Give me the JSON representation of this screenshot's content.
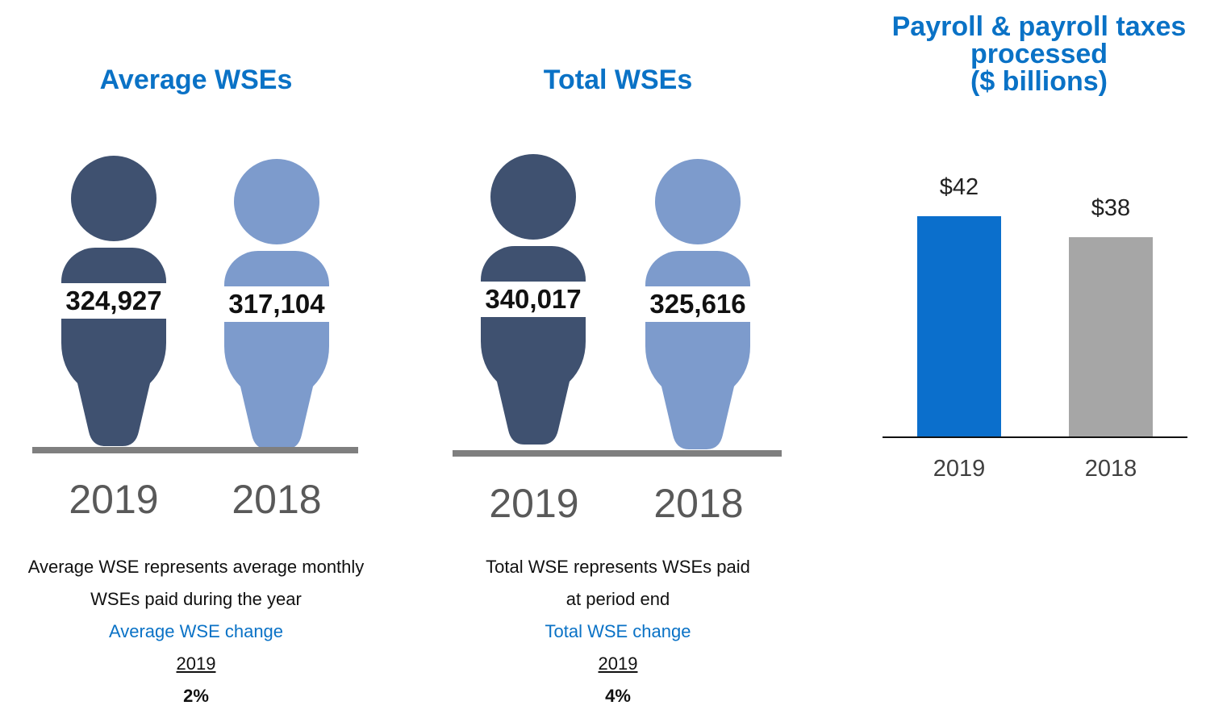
{
  "panels": [
    {
      "title": "Average WSEs",
      "people": [
        {
          "year": "2019",
          "value": "324,927"
        },
        {
          "year": "2018",
          "value": "317,104"
        }
      ],
      "note_line1": "Average WSE represents average monthly",
      "note_line2": "WSEs paid during the year",
      "change_label": "Average WSE change",
      "change_year": "2019",
      "change_value": "2%"
    },
    {
      "title": "Total WSEs",
      "people": [
        {
          "year": "2019",
          "value": "340,017"
        },
        {
          "year": "2018",
          "value": "325,616"
        }
      ],
      "note_line1": "Total WSE represents WSEs paid",
      "note_line2": "at period end",
      "change_label": "Total WSE change",
      "change_year": "2019",
      "change_value": "4%"
    }
  ],
  "colors": {
    "title_blue": "#0a72c6",
    "person_2019": "#3f5170",
    "person_2018": "#7d9bcc",
    "bar_2019": "#0b6fcc",
    "bar_2018": "#a6a6a6"
  },
  "chart_data": [
    {
      "type": "bar",
      "title_lines": [
        "Payroll & payroll taxes",
        "processed",
        "($ billions)"
      ],
      "categories": [
        "2019",
        "2018"
      ],
      "values": [
        42,
        38
      ],
      "value_labels": [
        "$42",
        "$38"
      ],
      "ylim": [
        0,
        50
      ],
      "xlabel": "",
      "ylabel": ""
    },
    {
      "type": "pictogram",
      "title": "Average WSEs",
      "categories": [
        "2019",
        "2018"
      ],
      "values": [
        324927,
        317104
      ]
    },
    {
      "type": "pictogram",
      "title": "Total WSEs",
      "categories": [
        "2019",
        "2018"
      ],
      "values": [
        340017,
        325616
      ]
    }
  ]
}
